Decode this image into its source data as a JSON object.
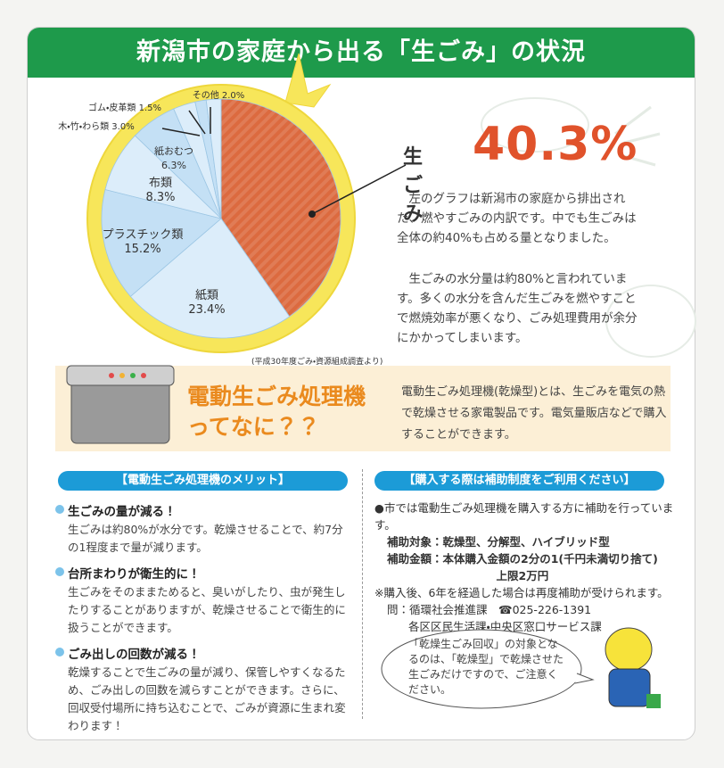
{
  "header": {
    "title": "新潟市の家庭から出る「生ごみ」の状況"
  },
  "chart_data": {
    "type": "pie",
    "categories": [
      "生ごみ",
      "紙類",
      "プラスチック類",
      "布類",
      "紙おむつ",
      "木・竹・わら類",
      "ゴム・皮革類",
      "その他"
    ],
    "values": [
      40.3,
      23.4,
      15.2,
      8.3,
      6.3,
      3.0,
      1.5,
      2.0
    ],
    "value_labels": [
      "40.3%",
      "23.4%",
      "15.2%",
      "8.3%",
      "6.3%",
      "3.0%",
      "1.5%",
      "2.0%"
    ],
    "colors": [
      "#dc6a3f",
      "#dcedfa",
      "#c4e0f5",
      "#dcedfa",
      "#c4e0f5",
      "#dcedfa",
      "#c4e0f5",
      "#dcedfa"
    ],
    "source": "(平成30年度ごみ・資源組成調査より)"
  },
  "description": [
    "左のグラフは新潟市の家庭から排出された、燃やすごみの内訳です。中でも生ごみは全体の約40%も占める量となりました。",
    "生ごみの水分量は約80%と言われています。多くの水分を含んだ生ごみを燃やすことで燃焼効率が悪くなり、ごみ処理費用が余分にかかってしまいます。"
  ],
  "machine": {
    "title": "電動生ごみ処理機ってなに？？",
    "text": "電動生ごみ処理機(乾燥型)とは、生ごみを電気の熱で乾燥させる家電製品です。電気量販店などで購入することができます。"
  },
  "merits": {
    "heading": "【電動生ごみ処理機のメリット】",
    "items": [
      {
        "title": "生ごみの量が減る！",
        "text": "生ごみは約80%が水分です。乾燥させることで、約7分の1程度まで量が減ります。"
      },
      {
        "title": "台所まわりが衛生的に！",
        "text": "生ごみをそのままためると、臭いがしたり、虫が発生したりすることがありますが、乾燥させることで衛生的に扱うことができます。"
      },
      {
        "title": "ごみ出しの回数が減る！",
        "text": "乾燥することで生ごみの量が減り、保管しやすくなるため、ごみ出しの回数を減らすことができます。さらに、回収受付場所に持ち込むことで、ごみが資源に生まれ変わります！"
      }
    ]
  },
  "subsidy": {
    "heading": "【購入する際は補助制度をご利用ください】",
    "intro": "●市では電動生ごみ処理機を購入する方に補助を行っています。",
    "details": [
      {
        "label": "補助対象：",
        "lines": [
          "乾燥型、分解型、ハイブリッド型"
        ]
      },
      {
        "label": "補助金額：",
        "lines": [
          "本体購入金額の2分の1(千円未満切り捨て)",
          "上限2万円"
        ]
      }
    ],
    "note": "※購入後、6年を経過した場合は再度補助が受けられます。",
    "contact": [
      "問：循環社会推進課　☎025-226-1391",
      "各区区民生活課・中央区窓口サービス課"
    ],
    "bubble": "「乾燥生ごみ回収」の対象となるのは、「乾燥型」で乾燥させた生ごみだけですので、ご注意ください。"
  }
}
